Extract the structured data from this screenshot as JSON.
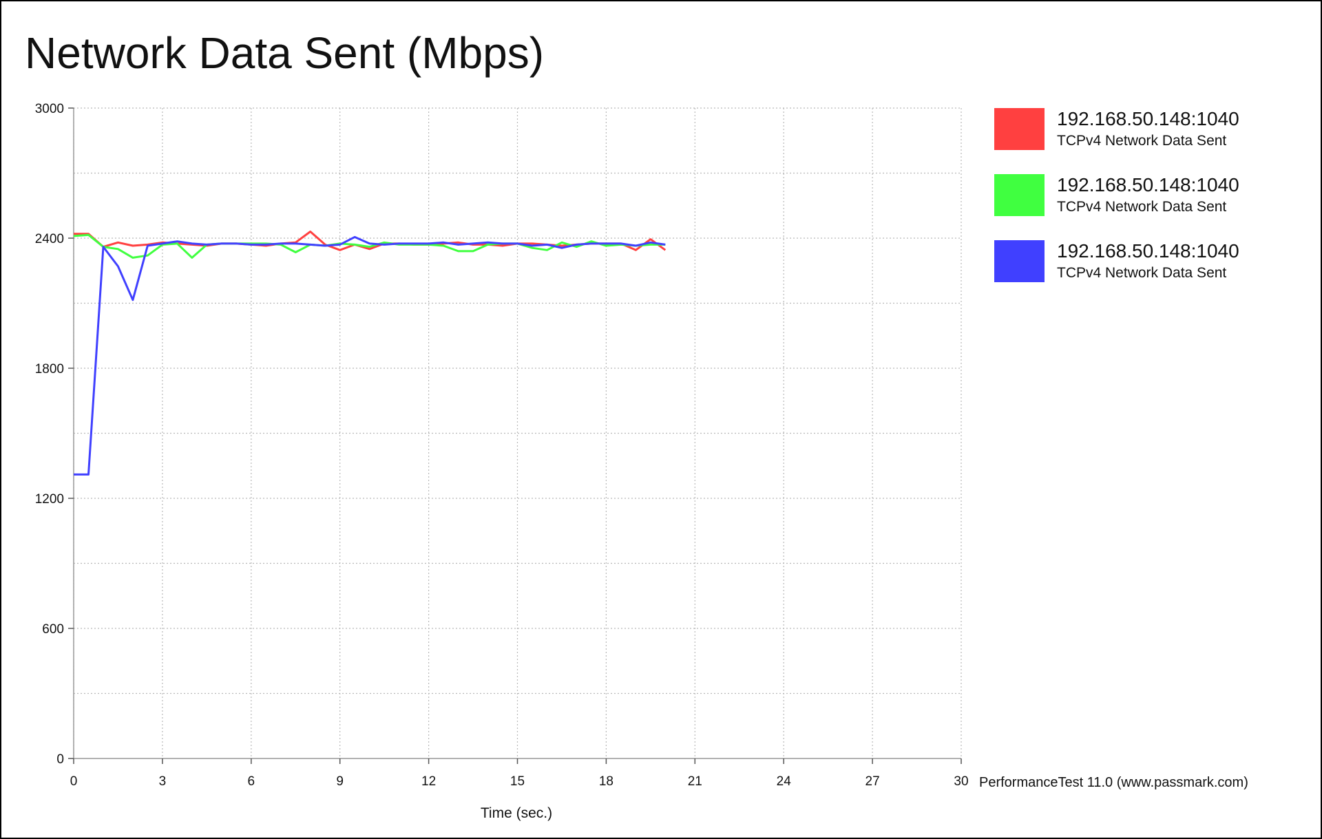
{
  "chart_data": {
    "type": "line",
    "title": "Network Data Sent (Mbps)",
    "xlabel": "Time (sec.)",
    "ylabel": "",
    "xlim": [
      0,
      30
    ],
    "ylim": [
      0,
      3000
    ],
    "x_ticks": [
      0,
      3,
      6,
      9,
      12,
      15,
      18,
      21,
      24,
      27,
      30
    ],
    "y_ticks": [
      0,
      600,
      1200,
      1800,
      2400,
      3000
    ],
    "grid": true,
    "legend_position": "right",
    "series": [
      {
        "name": "192.168.50.148:1040",
        "subtitle": "TCPv4 Network Data Sent",
        "color": "#ff4040",
        "x": [
          0,
          0.5,
          1.0,
          1.5,
          2.0,
          2.5,
          3.0,
          3.5,
          4.0,
          4.5,
          5.0,
          5.5,
          6.0,
          6.5,
          7.0,
          7.5,
          8.0,
          8.5,
          9.0,
          9.5,
          10.0,
          10.5,
          11.0,
          11.5,
          12.0,
          12.5,
          13.0,
          13.5,
          14.0,
          14.5,
          15.0,
          15.5,
          16.0,
          16.5,
          17.0,
          17.5,
          18.0,
          18.5,
          19.0,
          19.5,
          20.0
        ],
        "y": [
          2420,
          2420,
          2360,
          2380,
          2365,
          2370,
          2380,
          2375,
          2370,
          2365,
          2375,
          2375,
          2370,
          2365,
          2375,
          2380,
          2430,
          2370,
          2345,
          2370,
          2350,
          2375,
          2375,
          2370,
          2370,
          2375,
          2380,
          2370,
          2370,
          2365,
          2375,
          2375,
          2370,
          2365,
          2370,
          2375,
          2375,
          2375,
          2345,
          2395,
          2345
        ]
      },
      {
        "name": "192.168.50.148:1040",
        "subtitle": "TCPv4 Network Data Sent",
        "color": "#40ff40",
        "x": [
          0,
          0.5,
          1.0,
          1.5,
          2.0,
          2.5,
          3.0,
          3.5,
          4.0,
          4.5,
          5.0,
          5.5,
          6.0,
          6.5,
          7.0,
          7.5,
          8.0,
          8.5,
          9.0,
          9.5,
          10.0,
          10.5,
          11.0,
          11.5,
          12.0,
          12.5,
          13.0,
          13.5,
          14.0,
          14.5,
          15.0,
          15.5,
          16.0,
          16.5,
          17.0,
          17.5,
          18.0,
          18.5,
          19.0,
          19.5,
          20.0
        ],
        "y": [
          2410,
          2415,
          2360,
          2350,
          2310,
          2320,
          2370,
          2375,
          2310,
          2370,
          2375,
          2375,
          2375,
          2375,
          2370,
          2335,
          2370,
          2365,
          2375,
          2370,
          2360,
          2380,
          2370,
          2370,
          2370,
          2365,
          2340,
          2340,
          2370,
          2375,
          2375,
          2355,
          2345,
          2380,
          2360,
          2385,
          2365,
          2370,
          2365,
          2370,
          2370
        ]
      },
      {
        "name": "192.168.50.148:1040",
        "subtitle": "TCPv4 Network Data Sent",
        "color": "#4040ff",
        "x": [
          0,
          0.5,
          1.0,
          1.5,
          2.0,
          2.5,
          3.0,
          3.5,
          4.0,
          4.5,
          5.0,
          5.5,
          6.0,
          6.5,
          7.0,
          7.5,
          8.0,
          8.5,
          9.0,
          9.5,
          10.0,
          10.5,
          11.0,
          11.5,
          12.0,
          12.5,
          13.0,
          13.5,
          14.0,
          14.5,
          15.0,
          15.5,
          16.0,
          16.5,
          17.0,
          17.5,
          18.0,
          18.5,
          19.0,
          19.5,
          20.0
        ],
        "y": [
          1310,
          1310,
          2360,
          2270,
          2115,
          2365,
          2375,
          2385,
          2375,
          2370,
          2375,
          2375,
          2370,
          2370,
          2375,
          2375,
          2370,
          2365,
          2370,
          2405,
          2375,
          2370,
          2375,
          2375,
          2375,
          2380,
          2370,
          2375,
          2380,
          2375,
          2375,
          2365,
          2370,
          2355,
          2370,
          2375,
          2375,
          2375,
          2365,
          2380,
          2370
        ]
      }
    ]
  },
  "watermark": "PerformanceTest 11.0 (www.passmark.com)"
}
